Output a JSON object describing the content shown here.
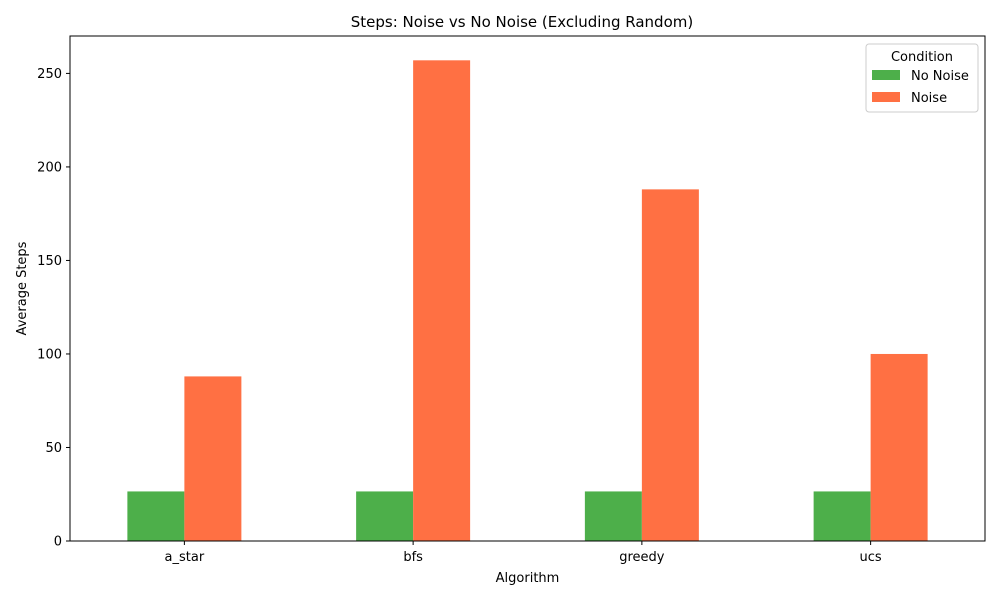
{
  "chart_data": {
    "type": "bar",
    "title": "Steps: Noise vs No Noise (Excluding Random)",
    "xlabel": "Algorithm",
    "ylabel": "Average Steps",
    "categories": [
      "a_star",
      "bfs",
      "greedy",
      "ucs"
    ],
    "series": [
      {
        "name": "No Noise",
        "values": [
          26.5,
          26.5,
          26.5,
          26.5
        ],
        "color": "#4daf4a"
      },
      {
        "name": "Noise",
        "values": [
          88,
          257,
          188,
          100
        ],
        "color": "#ff7043"
      }
    ],
    "ylim": [
      0,
      270
    ],
    "yticks": [
      0,
      50,
      100,
      150,
      200,
      250
    ],
    "grid": false,
    "legend": {
      "title": "Condition",
      "placement": "top-right"
    }
  }
}
